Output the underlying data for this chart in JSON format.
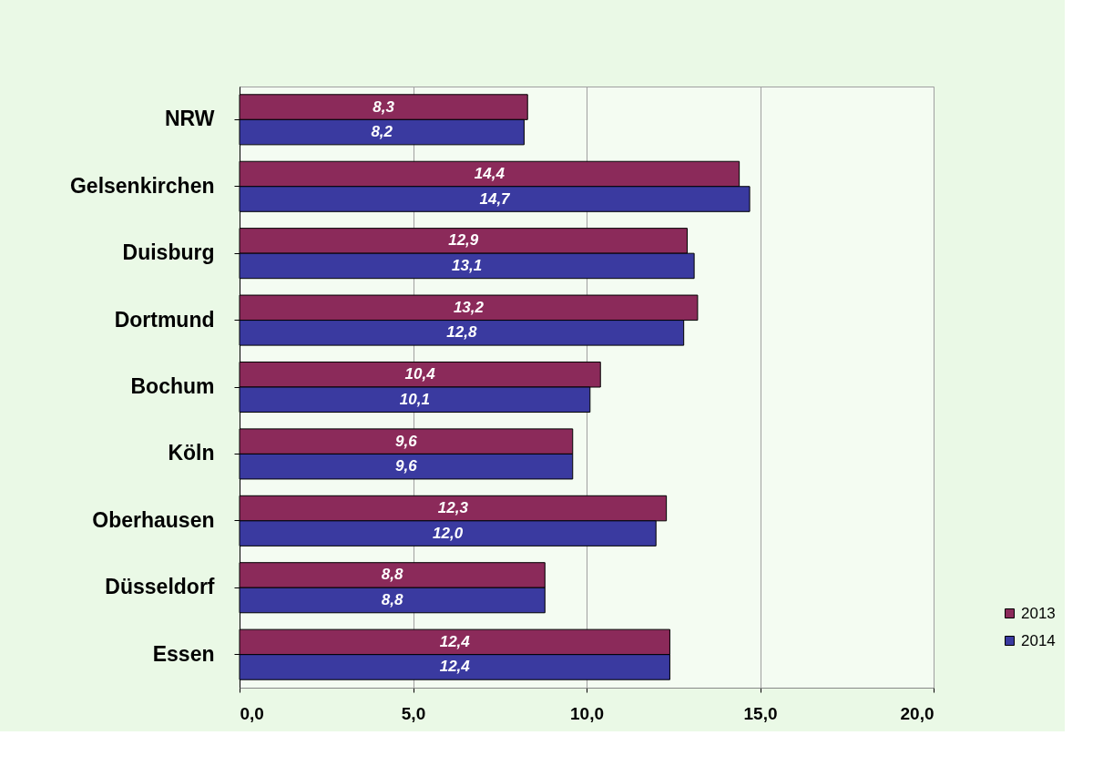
{
  "chart_data": {
    "type": "bar",
    "orientation": "horizontal",
    "categories": [
      "NRW",
      "Gelsenkirchen",
      "Duisburg",
      "Dortmund",
      "Bochum",
      "Köln",
      "Oberhausen",
      "Düsseldorf",
      "Essen"
    ],
    "series": [
      {
        "name": "2013",
        "color": "#8b2a5a",
        "values": [
          8.3,
          14.4,
          12.9,
          13.2,
          10.4,
          9.6,
          12.3,
          8.8,
          12.4
        ],
        "value_labels": [
          "8,3",
          "14,4",
          "12,9",
          "13,2",
          "10,4",
          "9,6",
          "12,3",
          "8,8",
          "12,4"
        ]
      },
      {
        "name": "2014",
        "color": "#3a3aa0",
        "values": [
          8.2,
          14.7,
          13.1,
          12.8,
          10.1,
          9.6,
          12.0,
          8.8,
          12.4
        ],
        "value_labels": [
          "8,2",
          "14,7",
          "13,1",
          "12,8",
          "10,1",
          "9,6",
          "12,0",
          "8,8",
          "12,4"
        ]
      }
    ],
    "xlim": [
      0,
      20
    ],
    "xticks": [
      {
        "value": 0,
        "label": "0,0"
      },
      {
        "value": 5,
        "label": "5,0"
      },
      {
        "value": 10,
        "label": "10,0"
      },
      {
        "value": 15,
        "label": "15,0"
      },
      {
        "value": 20,
        "label": "20,0"
      }
    ],
    "grid": "x",
    "legend": "bottom right"
  }
}
